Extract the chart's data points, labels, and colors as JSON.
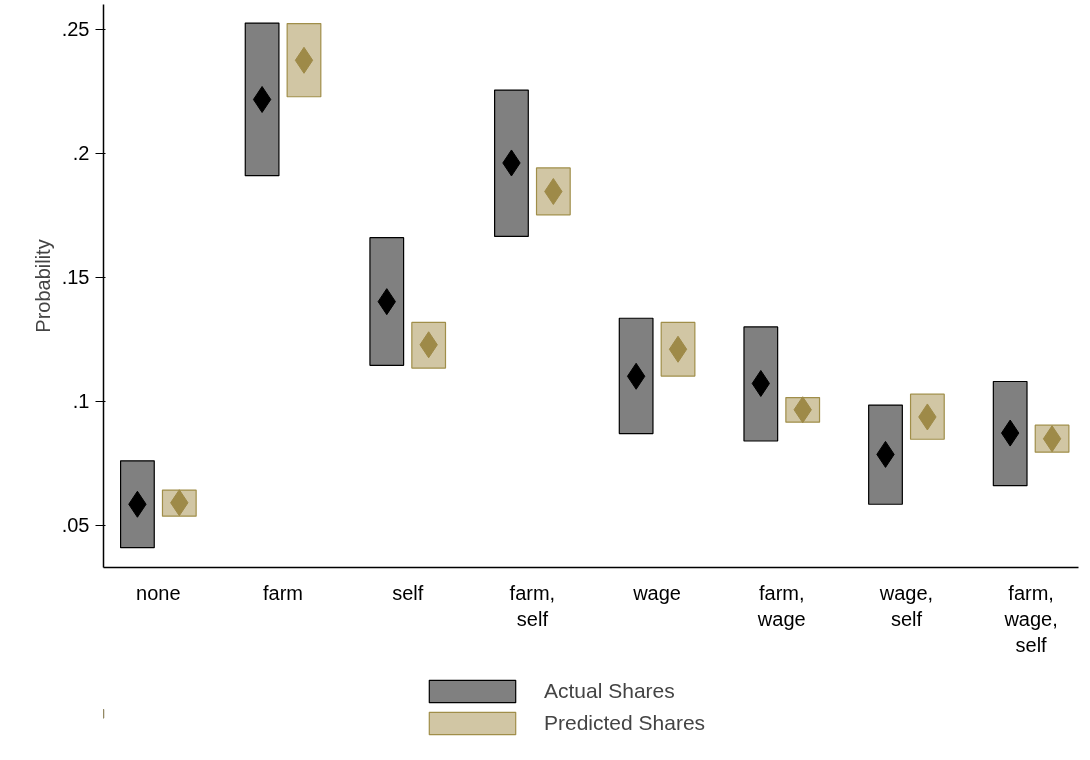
{
  "chart_data": {
    "type": "bar",
    "ylabel": "Probability",
    "categories": [
      "none",
      "farm",
      "self",
      "farm, self",
      "wage",
      "farm, wage",
      "wage, self",
      "farm, wage, self"
    ],
    "series": [
      {
        "name": "Actual Shares",
        "color": "#808080",
        "base": [
          0.041,
          0.191,
          0.1145,
          0.1665,
          0.087,
          0.084,
          0.0585,
          0.066
        ],
        "values": [
          0.035,
          0.0615,
          0.0515,
          0.059,
          0.0465,
          0.046,
          0.04,
          0.042
        ]
      },
      {
        "name": "Predicted Shares",
        "color": "#d1c6a4",
        "base": [
          0.0537,
          0.2228,
          0.1134,
          0.1752,
          0.1102,
          0.0916,
          0.0847,
          0.0795
        ],
        "values": [
          0.0105,
          0.0295,
          0.0184,
          0.0189,
          0.0216,
          0.0099,
          0.0182,
          0.0109
        ]
      },
      {
        "type": "scatter",
        "color": "#000000",
        "x": [
          "none",
          "farm",
          "self",
          "farm, self",
          "wage",
          "farm, wage",
          "wage, self",
          "farm, wage, self"
        ],
        "values": [
          0.0585,
          0.2217,
          0.1402,
          0.1961,
          0.1101,
          0.1072,
          0.0786,
          0.0872
        ]
      },
      {
        "type": "scatter",
        "color": "#9e8a48",
        "x": [
          "none",
          "farm",
          "self",
          "farm, self",
          "wage",
          "farm, wage",
          "wage, self",
          "farm, wage, self"
        ],
        "values": [
          0.0591,
          0.2375,
          0.1228,
          0.1846,
          0.121,
          0.0966,
          0.0937,
          0.0849
        ]
      }
    ],
    "marker": "diamond",
    "ylim": [
      0.033,
      0.26
    ],
    "yticks": [
      {
        "value": 0.05,
        "label": ".05"
      },
      {
        "value": 0.1,
        "label": ".1"
      },
      {
        "value": 0.15,
        "label": ".15"
      },
      {
        "value": 0.2,
        "label": ".2"
      },
      {
        "value": 0.25,
        "label": ".25"
      }
    ],
    "grid": false,
    "legend": "bottom"
  }
}
